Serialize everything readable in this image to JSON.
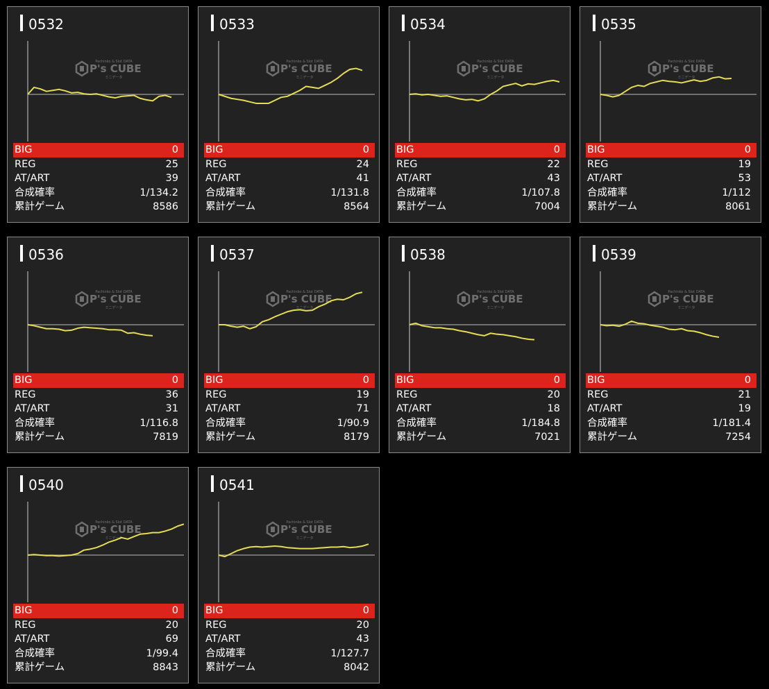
{
  "labels": {
    "big": "BIG",
    "reg": "REG",
    "at": "AT/ART",
    "prob": "合成確率",
    "games": "累計ゲーム"
  },
  "watermark": {
    "top": "Pachinko & Slot DATA",
    "main": "P's CUBE",
    "sub": "ミニデータ"
  },
  "colors": {
    "line": "#e6dd55",
    "big_bar": "#dc241c",
    "baseline": "#8a8a8a",
    "card_bg": "#222222"
  },
  "machines": [
    {
      "id": "0532",
      "big": "0",
      "reg": "25",
      "at": "39",
      "prob": "1/134.2",
      "games": "8586",
      "trend": [
        0,
        14,
        11,
        6,
        8,
        10,
        7,
        3,
        4,
        1,
        0,
        1,
        -2,
        -5,
        -7,
        -4,
        -3,
        -2,
        -8,
        -11,
        -13,
        -4,
        -2,
        -6
      ]
    },
    {
      "id": "0533",
      "big": "0",
      "reg": "24",
      "at": "41",
      "prob": "1/131.8",
      "games": "8564",
      "trend": [
        0,
        -4,
        -8,
        -10,
        -12,
        -15,
        -18,
        -18,
        -18,
        -12,
        -6,
        -4,
        2,
        8,
        16,
        14,
        12,
        18,
        24,
        32,
        42,
        50,
        52,
        48
      ]
    },
    {
      "id": "0534",
      "big": "0",
      "reg": "22",
      "at": "43",
      "prob": "1/107.8",
      "games": "7004",
      "trend": [
        0,
        1,
        -1,
        0,
        -2,
        -4,
        -3,
        -6,
        -9,
        -11,
        -10,
        -13,
        -9,
        0,
        7,
        16,
        19,
        22,
        17,
        21,
        20,
        23,
        26,
        28,
        25
      ]
    },
    {
      "id": "0535",
      "big": "0",
      "reg": "19",
      "at": "53",
      "prob": "1/112",
      "games": "8061",
      "trend": [
        0,
        -2,
        -5,
        -2,
        6,
        14,
        18,
        16,
        22,
        25,
        28,
        26,
        25,
        23,
        26,
        29,
        26,
        28,
        33,
        35,
        31,
        32
      ]
    },
    {
      "id": "0536",
      "big": "0",
      "reg": "36",
      "at": "31",
      "prob": "1/116.8",
      "games": "7819",
      "trend": [
        0,
        -2,
        -5,
        -8,
        -8,
        -9,
        -12,
        -11,
        -7,
        -5,
        -6,
        -7,
        -8,
        -10,
        -10,
        -11,
        -17,
        -16,
        -19,
        -21,
        -22
      ]
    },
    {
      "id": "0537",
      "big": "0",
      "reg": "19",
      "at": "71",
      "prob": "1/90.9",
      "games": "8179",
      "trend": [
        0,
        0,
        -3,
        -5,
        -3,
        -8,
        -4,
        6,
        10,
        16,
        21,
        26,
        29,
        30,
        28,
        29,
        36,
        41,
        48,
        51,
        50,
        55,
        62,
        65
      ]
    },
    {
      "id": "0538",
      "big": "0",
      "reg": "20",
      "at": "18",
      "prob": "1/184.8",
      "games": "7021",
      "trend": [
        0,
        3,
        -2,
        -4,
        -6,
        -6,
        -8,
        -9,
        -12,
        -14,
        -17,
        -20,
        -22,
        -17,
        -19,
        -20,
        -22,
        -24,
        -27,
        -29,
        -30
      ]
    },
    {
      "id": "0539",
      "big": "0",
      "reg": "21",
      "at": "19",
      "prob": "1/181.4",
      "games": "7254",
      "trend": [
        0,
        -2,
        -1,
        -3,
        1,
        7,
        3,
        2,
        -1,
        -3,
        -5,
        -9,
        -10,
        -8,
        -12,
        -13,
        -16,
        -20,
        -23,
        -25
      ]
    },
    {
      "id": "0540",
      "big": "0",
      "reg": "20",
      "at": "69",
      "prob": "1/99.4",
      "games": "8843",
      "trend": [
        0,
        1,
        0,
        -1,
        -1,
        -2,
        -1,
        0,
        3,
        10,
        12,
        15,
        20,
        26,
        30,
        35,
        32,
        37,
        42,
        43,
        45,
        45,
        48,
        52,
        58,
        62
      ]
    },
    {
      "id": "0541",
      "big": "0",
      "reg": "20",
      "at": "43",
      "prob": "1/127.7",
      "games": "8042",
      "trend": [
        0,
        -3,
        3,
        9,
        13,
        16,
        17,
        16,
        17,
        18,
        17,
        15,
        14,
        13,
        13,
        13,
        14,
        15,
        16,
        16,
        17,
        15,
        16,
        18,
        22
      ]
    }
  ]
}
